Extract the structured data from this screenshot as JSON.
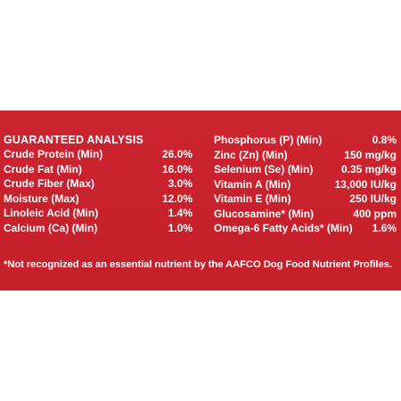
{
  "guaranteed_analysis": {
    "heading": "GUARANTEED ANALYSIS",
    "left_rows": [
      {
        "label": "Crude Protein (Min)",
        "value": "26.0%"
      },
      {
        "label": "Crude Fat (Min)",
        "value": "16.0%"
      },
      {
        "label": "Crude Fiber (Max)",
        "value": "3.0%"
      },
      {
        "label": "Moisture (Max)",
        "value": "12.0%"
      },
      {
        "label": "Linoleic Acid (Min)",
        "value": "1.4%"
      },
      {
        "label": "Calcium (Ca) (Min)",
        "value": "1.0%"
      }
    ],
    "right_rows": [
      {
        "label": "Phosphorus (P) (Min)",
        "value": "0.8%"
      },
      {
        "label": "Zinc (Zn) (Min)",
        "value": "150 mg/kg"
      },
      {
        "label": "Selenium (Se) (Min)",
        "value": "0.35 mg/kg"
      },
      {
        "label": "Vitamin A (Min)",
        "value": "13,000 IU/kg"
      },
      {
        "label": "Vitamin E (Min)",
        "value": "250 IU/kg"
      },
      {
        "label": "Glucosamine* (Min)",
        "value": "400 ppm"
      },
      {
        "label": "Omega-6 Fatty Acids* (Min)",
        "value": "1.6%"
      }
    ],
    "footnote": "*Not recognized as an essential nutrient by the AAFCO Dog Food Nutrient Profiles."
  },
  "colors": {
    "panel_background": "#c8202c",
    "text": "#ffffff",
    "page_background": "#ffffff"
  }
}
